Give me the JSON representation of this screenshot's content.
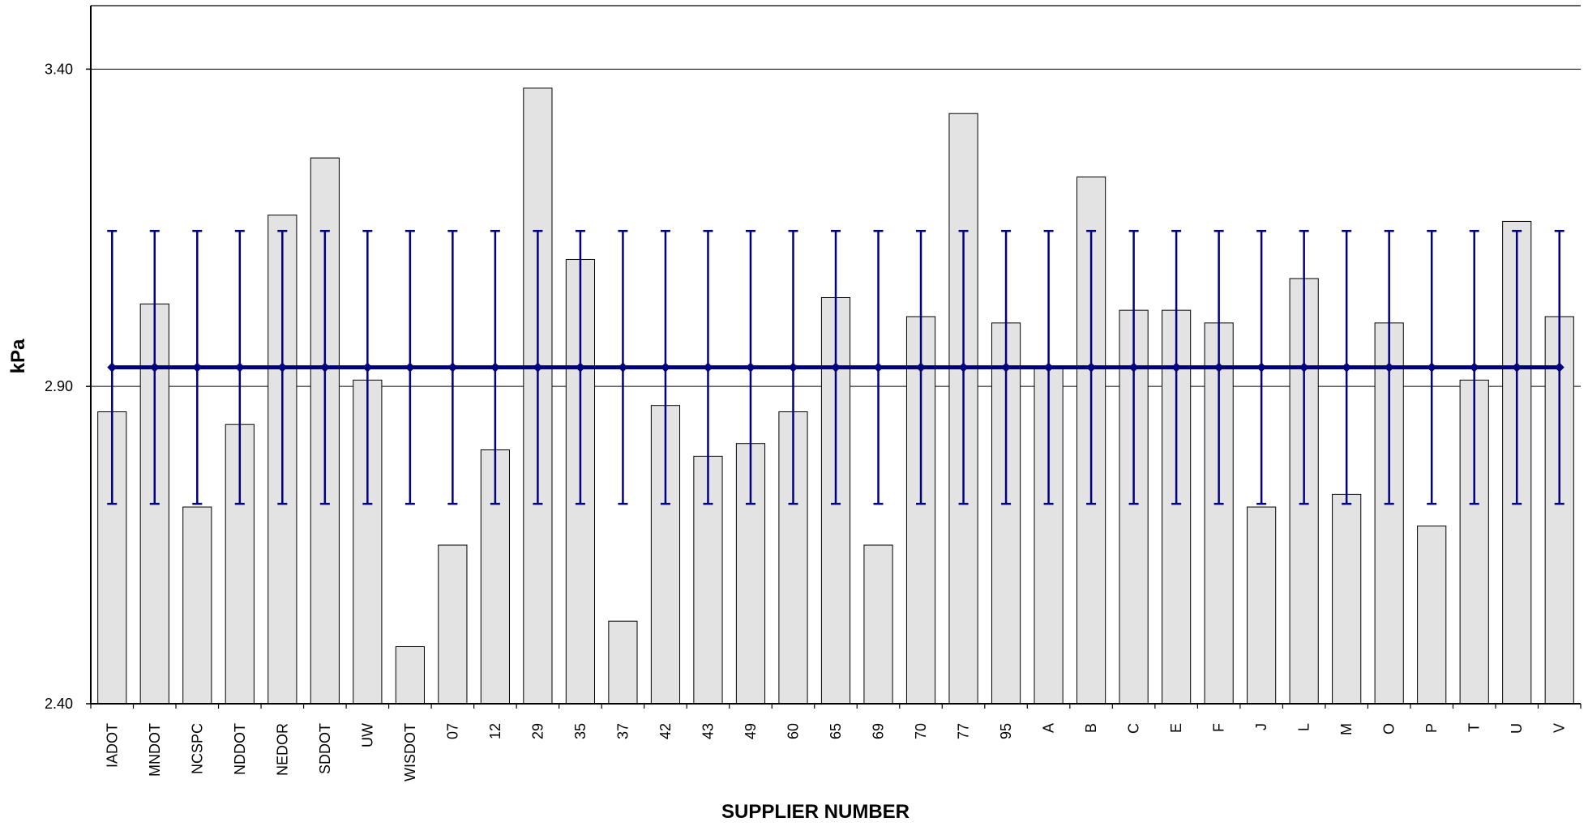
{
  "chart_data": {
    "type": "bar",
    "title": "",
    "xlabel": "SUPPLIER NUMBER",
    "ylabel": "kPa",
    "ylim": [
      2.4,
      3.5
    ],
    "yticks": [
      2.4,
      2.9,
      3.4
    ],
    "ytick_labels": [
      "2.40",
      "2.90",
      "3.40"
    ],
    "grid": "horizontal at major ticks",
    "legend": "none",
    "categories": [
      "IADOT",
      "MNDOT",
      "NCSPC",
      "NDDOT",
      "NEDOR",
      "SDDOT",
      "UW",
      "WISDOT",
      "07",
      "12",
      "29",
      "35",
      "37",
      "42",
      "43",
      "49",
      "60",
      "65",
      "69",
      "70",
      "77",
      "95",
      "A",
      "B",
      "C",
      "E",
      "F",
      "J",
      "L",
      "M",
      "O",
      "P",
      "T",
      "U",
      "V"
    ],
    "series": [
      {
        "type": "bar",
        "values": [
          2.86,
          3.03,
          2.71,
          2.84,
          3.17,
          3.26,
          2.91,
          2.49,
          2.65,
          2.8,
          3.37,
          3.1,
          2.53,
          2.87,
          2.79,
          2.81,
          2.86,
          3.04,
          2.65,
          3.01,
          3.33,
          3.0,
          2.93,
          3.23,
          3.02,
          3.02,
          3.0,
          2.71,
          3.07,
          2.73,
          3.0,
          2.68,
          2.91,
          3.16,
          3.01
        ]
      },
      {
        "type": "line",
        "value": 2.93,
        "error_low": 2.715,
        "error_high": 3.145
      }
    ],
    "colors": {
      "bar_fill": "#e3e3e3",
      "bar_stroke": "#000000",
      "mean_line": "#000080",
      "grid": "#000000"
    }
  }
}
